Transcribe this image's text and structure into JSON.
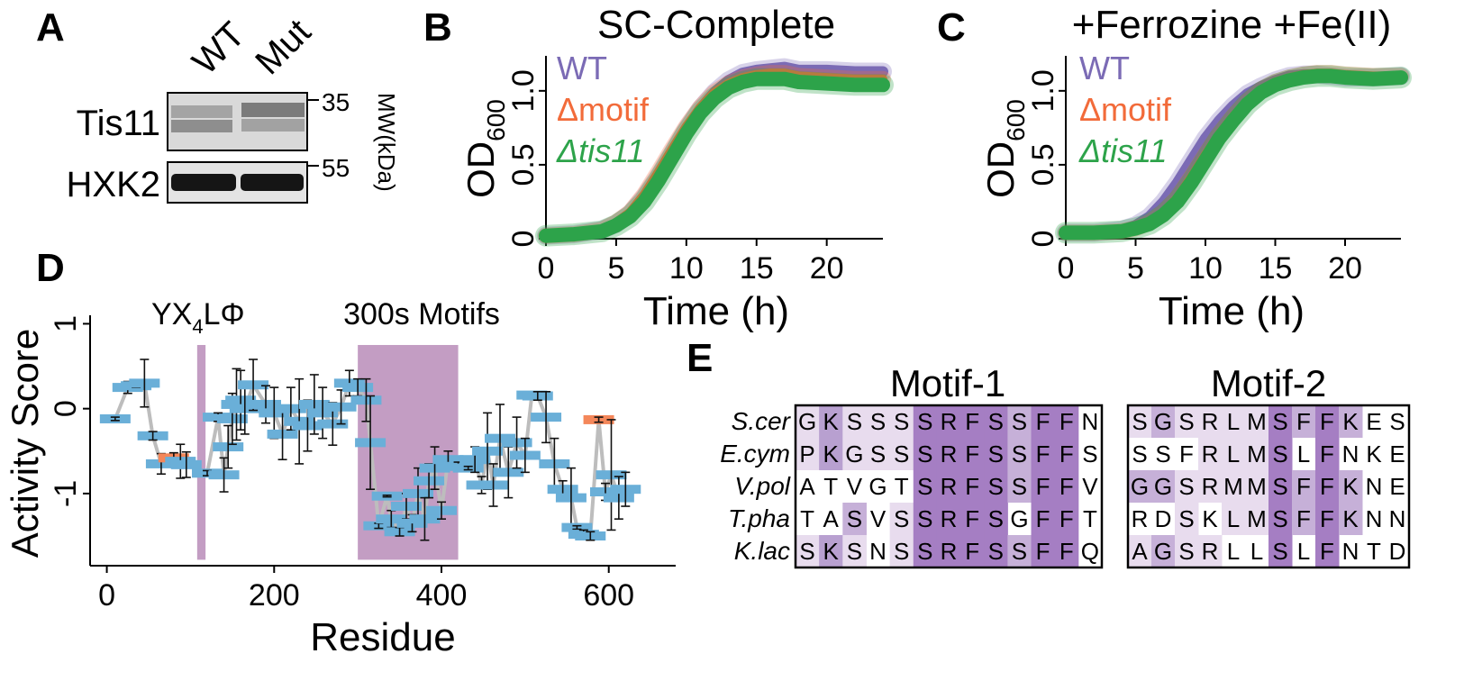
{
  "panel_labels": {
    "a": "A",
    "b": "B",
    "c": "C",
    "d": "D",
    "e": "E"
  },
  "blot": {
    "lanes": [
      "WT",
      "Mut"
    ],
    "rows": [
      "Tis11",
      "HXK2"
    ],
    "markers": [
      "35",
      "55"
    ],
    "axis_label": "MW(kDa)"
  },
  "chart_data": [
    {
      "panel": "B",
      "type": "line",
      "title": "SC-Complete",
      "xlabel": "Time (h)",
      "ylabel_main": "OD",
      "ylabel_sub": "600",
      "xlim": [
        0,
        24
      ],
      "ylim": [
        0,
        1.2
      ],
      "xticks": [
        0,
        5,
        10,
        15,
        20
      ],
      "yticks": [
        0,
        0.5,
        1.0
      ],
      "yticklabels": [
        "0",
        "0.5",
        "1.0"
      ],
      "legend_placement": "top-left",
      "series": [
        {
          "name": "WT",
          "color": "#7b6bb5",
          "x": [
            0,
            2,
            4,
            5,
            6,
            7,
            8,
            9,
            10,
            11,
            12,
            13,
            14,
            15,
            16,
            17,
            18,
            20,
            22,
            24
          ],
          "y": [
            0.02,
            0.03,
            0.06,
            0.1,
            0.17,
            0.28,
            0.42,
            0.58,
            0.74,
            0.88,
            0.99,
            1.07,
            1.12,
            1.14,
            1.15,
            1.16,
            1.14,
            1.14,
            1.13,
            1.13
          ]
        },
        {
          "name": "Δmotif",
          "color": "#f26b3a",
          "x": [
            0,
            2,
            4,
            5,
            6,
            7,
            8,
            9,
            10,
            11,
            12,
            13,
            14,
            15,
            16,
            17,
            18,
            20,
            22,
            24
          ],
          "y": [
            0.02,
            0.03,
            0.06,
            0.11,
            0.18,
            0.3,
            0.45,
            0.61,
            0.76,
            0.89,
            0.99,
            1.05,
            1.09,
            1.11,
            1.12,
            1.12,
            1.1,
            1.09,
            1.08,
            1.08
          ]
        },
        {
          "name": "Δtis11",
          "color": "#2da34a",
          "x": [
            0,
            2,
            4,
            5,
            6,
            7,
            8,
            9,
            10,
            11,
            12,
            13,
            14,
            15,
            16,
            17,
            18,
            20,
            22,
            24
          ],
          "y": [
            0.02,
            0.03,
            0.05,
            0.09,
            0.15,
            0.25,
            0.39,
            0.55,
            0.71,
            0.85,
            0.95,
            1.02,
            1.06,
            1.08,
            1.08,
            1.08,
            1.06,
            1.05,
            1.04,
            1.04
          ]
        }
      ]
    },
    {
      "panel": "C",
      "type": "line",
      "title": "+Ferrozine +Fe(II)",
      "xlabel": "Time (h)",
      "ylabel_main": "OD",
      "ylabel_sub": "600",
      "xlim": [
        0,
        24
      ],
      "ylim": [
        0,
        1.2
      ],
      "xticks": [
        0,
        5,
        10,
        15,
        20
      ],
      "yticks": [
        0,
        0.5,
        1.0
      ],
      "yticklabels": [
        "0",
        "0.5",
        "1.0"
      ],
      "legend_placement": "top-left",
      "series": [
        {
          "name": "WT",
          "color": "#7b6bb5",
          "x": [
            0,
            2,
            4,
            5,
            6,
            7,
            8,
            9,
            10,
            11,
            12,
            13,
            14,
            15,
            16,
            17,
            18,
            19,
            20,
            22,
            24
          ],
          "y": [
            0.04,
            0.04,
            0.06,
            0.09,
            0.15,
            0.25,
            0.38,
            0.53,
            0.68,
            0.8,
            0.9,
            0.98,
            1.03,
            1.07,
            1.1,
            1.11,
            1.11,
            1.1,
            1.09,
            1.09,
            1.1
          ]
        },
        {
          "name": "Δmotif",
          "color": "#f26b3a",
          "x": [
            0,
            2,
            4,
            5,
            6,
            7,
            8,
            9,
            10,
            11,
            12,
            13,
            14,
            15,
            16,
            17,
            18,
            19,
            20,
            22,
            24
          ],
          "y": [
            0.04,
            0.04,
            0.05,
            0.07,
            0.11,
            0.18,
            0.28,
            0.42,
            0.57,
            0.71,
            0.83,
            0.93,
            1.01,
            1.06,
            1.09,
            1.11,
            1.12,
            1.12,
            1.11,
            1.1,
            1.1
          ]
        },
        {
          "name": "Δtis11",
          "color": "#2da34a",
          "x": [
            0,
            2,
            4,
            5,
            6,
            7,
            8,
            9,
            10,
            11,
            12,
            13,
            14,
            15,
            16,
            17,
            18,
            19,
            20,
            22,
            24
          ],
          "y": [
            0.04,
            0.04,
            0.05,
            0.07,
            0.1,
            0.16,
            0.25,
            0.38,
            0.53,
            0.68,
            0.8,
            0.91,
            0.99,
            1.04,
            1.07,
            1.09,
            1.1,
            1.1,
            1.09,
            1.08,
            1.09
          ]
        }
      ]
    },
    {
      "panel": "D",
      "type": "scatter",
      "xlabel": "Residue",
      "ylabel": "Activity Score",
      "xlim": [
        -20,
        680
      ],
      "ylim": [
        -1.85,
        1.1
      ],
      "xticks": [
        0,
        200,
        400,
        600
      ],
      "yticks": [
        1,
        0,
        -1
      ],
      "annotations": [
        {
          "text_main": "YX",
          "text_sub": "4",
          "text_tail": "LΦ",
          "x_range": [
            108,
            118
          ],
          "color": "#c39dc3"
        },
        {
          "text_main": "300s Motifs",
          "x_range": [
            300,
            420
          ],
          "color": "#c39dc3"
        }
      ],
      "points": [
        {
          "x": 10,
          "y": -0.12,
          "err": 0.02,
          "color": "#6aafd8"
        },
        {
          "x": 25,
          "y": 0.25,
          "err": 0.07,
          "color": "#6aafd8"
        },
        {
          "x": 35,
          "y": 0.27,
          "err": 0.02,
          "color": "#6aafd8"
        },
        {
          "x": 45,
          "y": 0.3,
          "err": 0.28,
          "color": "#6aafd8"
        },
        {
          "x": 55,
          "y": -0.32,
          "err": 0.05,
          "color": "#6aafd8"
        },
        {
          "x": 65,
          "y": -0.65,
          "err": 0.12,
          "color": "#6aafd8"
        },
        {
          "x": 80,
          "y": -0.58,
          "err": 0.06,
          "color": "#f4875a"
        },
        {
          "x": 88,
          "y": -0.62,
          "err": 0.2,
          "color": "#6aafd8"
        },
        {
          "x": 95,
          "y": -0.66,
          "err": 0.15,
          "color": "#6aafd8"
        },
        {
          "x": 120,
          "y": -0.76,
          "err": 0.03,
          "color": "#6aafd8"
        },
        {
          "x": 133,
          "y": -0.1,
          "err": 0.05,
          "color": "#6aafd8"
        },
        {
          "x": 140,
          "y": -0.78,
          "err": 0.2,
          "color": "#6aafd8"
        },
        {
          "x": 145,
          "y": -0.45,
          "err": 0.25,
          "color": "#6aafd8"
        },
        {
          "x": 150,
          "y": -0.12,
          "err": 0.3,
          "color": "#6aafd8"
        },
        {
          "x": 155,
          "y": 0.05,
          "err": 0.42,
          "color": "#6aafd8"
        },
        {
          "x": 160,
          "y": 0.1,
          "err": 0.35,
          "color": "#6aafd8"
        },
        {
          "x": 165,
          "y": 0.0,
          "err": 0.3,
          "color": "#6aafd8"
        },
        {
          "x": 175,
          "y": 0.28,
          "err": 0.3,
          "color": "#6aafd8"
        },
        {
          "x": 190,
          "y": 0.05,
          "err": 0.22,
          "color": "#6aafd8"
        },
        {
          "x": 200,
          "y": -0.05,
          "err": 0.3,
          "color": "#6aafd8"
        },
        {
          "x": 210,
          "y": -0.3,
          "err": 0.3,
          "color": "#6aafd8"
        },
        {
          "x": 220,
          "y": 0.0,
          "err": 0.25,
          "color": "#6aafd8"
        },
        {
          "x": 230,
          "y": -0.15,
          "err": 0.5,
          "color": "#6aafd8"
        },
        {
          "x": 240,
          "y": -0.2,
          "err": 0.3,
          "color": "#6aafd8"
        },
        {
          "x": 248,
          "y": 0.05,
          "err": 0.35,
          "color": "#6aafd8"
        },
        {
          "x": 258,
          "y": -0.05,
          "err": 0.3,
          "color": "#6aafd8"
        },
        {
          "x": 270,
          "y": -0.18,
          "err": 0.25,
          "color": "#6aafd8"
        },
        {
          "x": 280,
          "y": 0.02,
          "err": 0.2,
          "color": "#6aafd8"
        },
        {
          "x": 290,
          "y": 0.3,
          "err": 0.15,
          "color": "#6aafd8"
        },
        {
          "x": 300,
          "y": 0.25,
          "err": 0.1,
          "color": "#6aafd8"
        },
        {
          "x": 310,
          "y": 0.1,
          "err": 0.25,
          "color": "#6aafd8"
        },
        {
          "x": 315,
          "y": -0.4,
          "err": 0.55,
          "color": "#6aafd8"
        },
        {
          "x": 325,
          "y": -1.38,
          "err": 0.03,
          "color": "#6aafd8"
        },
        {
          "x": 335,
          "y": -1.03,
          "err": 0.01,
          "color": "#6aafd8"
        },
        {
          "x": 340,
          "y": -1.3,
          "err": 0.1,
          "color": "#6aafd8"
        },
        {
          "x": 350,
          "y": -1.45,
          "err": 0.05,
          "color": "#6aafd8"
        },
        {
          "x": 358,
          "y": -1.15,
          "err": 0.15,
          "color": "#6aafd8"
        },
        {
          "x": 365,
          "y": -1.35,
          "err": 0.1,
          "color": "#6aafd8"
        },
        {
          "x": 372,
          "y": -1.0,
          "err": 0.3,
          "color": "#6aafd8"
        },
        {
          "x": 380,
          "y": -1.3,
          "err": 0.25,
          "color": "#6aafd8"
        },
        {
          "x": 385,
          "y": -0.85,
          "err": 0.2,
          "color": "#6aafd8"
        },
        {
          "x": 392,
          "y": -0.7,
          "err": 0.25,
          "color": "#6aafd8"
        },
        {
          "x": 400,
          "y": -1.2,
          "err": 0.1,
          "color": "#6aafd8"
        },
        {
          "x": 408,
          "y": -0.6,
          "err": 0.1,
          "color": "#6aafd8"
        },
        {
          "x": 420,
          "y": -0.68,
          "err": 0.05,
          "color": "#6aafd8"
        },
        {
          "x": 432,
          "y": -0.7,
          "err": 0.02,
          "color": "#6aafd8"
        },
        {
          "x": 440,
          "y": -0.6,
          "err": 0.15,
          "color": "#6aafd8"
        },
        {
          "x": 448,
          "y": -0.9,
          "err": 0.1,
          "color": "#6aafd8"
        },
        {
          "x": 455,
          "y": -0.5,
          "err": 0.45,
          "color": "#6aafd8"
        },
        {
          "x": 462,
          "y": -0.9,
          "err": 0.25,
          "color": "#6aafd8"
        },
        {
          "x": 470,
          "y": -0.35,
          "err": 0.4,
          "color": "#6aafd8"
        },
        {
          "x": 480,
          "y": -0.75,
          "err": 0.3,
          "color": "#6aafd8"
        },
        {
          "x": 490,
          "y": -0.4,
          "err": 0.3,
          "color": "#6aafd8"
        },
        {
          "x": 500,
          "y": -0.55,
          "err": 0.2,
          "color": "#6aafd8"
        },
        {
          "x": 508,
          "y": 0.16,
          "err": 0.03,
          "color": "#6aafd8"
        },
        {
          "x": 515,
          "y": 0.15,
          "err": 0.05,
          "color": "#6aafd8"
        },
        {
          "x": 525,
          "y": -0.1,
          "err": 0.3,
          "color": "#6aafd8"
        },
        {
          "x": 535,
          "y": -0.65,
          "err": 0.3,
          "color": "#6aafd8"
        },
        {
          "x": 545,
          "y": -0.95,
          "err": 0.1,
          "color": "#6aafd8"
        },
        {
          "x": 555,
          "y": -1.05,
          "err": 0.35,
          "color": "#6aafd8"
        },
        {
          "x": 562,
          "y": -1.4,
          "err": 0.02,
          "color": "#6aafd8"
        },
        {
          "x": 570,
          "y": -1.48,
          "err": 0.05,
          "color": "#6aafd8"
        },
        {
          "x": 578,
          "y": -1.5,
          "err": 0.05,
          "color": "#6aafd8"
        },
        {
          "x": 588,
          "y": -0.13,
          "err": 0.03,
          "color": "#f4875a"
        },
        {
          "x": 596,
          "y": -0.98,
          "err": 0.1,
          "color": "#6aafd8"
        },
        {
          "x": 603,
          "y": -0.78,
          "err": 0.65,
          "color": "#6aafd8"
        },
        {
          "x": 612,
          "y": -1.05,
          "err": 0.25,
          "color": "#6aafd8"
        },
        {
          "x": 620,
          "y": -0.95,
          "err": 0.2,
          "color": "#6aafd8"
        }
      ]
    }
  ],
  "alignment": {
    "species": [
      "S.cer",
      "E.cym",
      "V.pol",
      "T.pha",
      "K.lac"
    ],
    "motifs": [
      {
        "title": "Motif-1",
        "seqs": [
          "GKSSSSRFSSFFN",
          "PKGSSSRFSSFFS",
          "ATVGTSRFSSFFV",
          "TASVSSRFSGFFT",
          "SKSNSSRFSSFFQ"
        ],
        "shade": [
          [
            1,
            3,
            1,
            1,
            1,
            4,
            4,
            4,
            4,
            2,
            4,
            4,
            0
          ],
          [
            1,
            3,
            1,
            1,
            1,
            4,
            4,
            4,
            4,
            2,
            4,
            4,
            0
          ],
          [
            0,
            0,
            0,
            0,
            0,
            4,
            4,
            4,
            4,
            2,
            4,
            4,
            0
          ],
          [
            0,
            0,
            2,
            0,
            1,
            4,
            4,
            4,
            4,
            0,
            4,
            4,
            0
          ],
          [
            1,
            3,
            1,
            0,
            1,
            4,
            4,
            4,
            4,
            2,
            4,
            4,
            0
          ]
        ]
      },
      {
        "title": "Motif-2",
        "seqs": [
          "SGSRLMSFFKES",
          "SSFRLMSLFNKE",
          "GGSRMMSFFKNE",
          "RDSKLMSFFKNN",
          "AGSRLLSLFNTD"
        ],
        "shade": [
          [
            1,
            2,
            1,
            1,
            1,
            1,
            4,
            2,
            4,
            2,
            0,
            0
          ],
          [
            0,
            0,
            0,
            1,
            1,
            1,
            4,
            0,
            4,
            0,
            0,
            0
          ],
          [
            2,
            2,
            1,
            1,
            1,
            1,
            4,
            2,
            4,
            2,
            0,
            0
          ],
          [
            0,
            0,
            1,
            0,
            1,
            1,
            4,
            2,
            4,
            2,
            0,
            0
          ],
          [
            1,
            2,
            1,
            1,
            0,
            0,
            4,
            0,
            4,
            0,
            0,
            0
          ]
        ]
      }
    ],
    "shade_colors": [
      "#ffffff",
      "#e8dcee",
      "#c6b0d8",
      "#b8a0d0",
      "#a57ec3"
    ]
  }
}
